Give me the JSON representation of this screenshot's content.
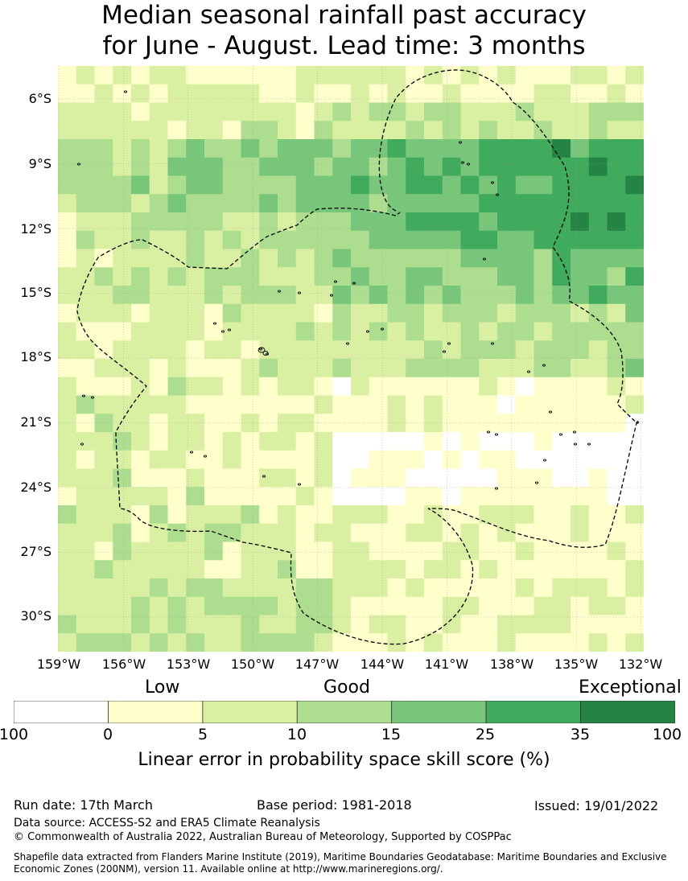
{
  "title": {
    "line1": "Median seasonal rainfall past accuracy",
    "line2": "for June - August. Lead time: 3 months"
  },
  "map": {
    "lat_labels": [
      "6°S",
      "9°S",
      "12°S",
      "15°S",
      "18°S",
      "21°S",
      "24°S",
      "27°S",
      "30°S"
    ],
    "lon_labels": [
      "159°W",
      "156°W",
      "153°W",
      "150°W",
      "147°W",
      "144°W",
      "141°W",
      "138°W",
      "135°W",
      "132°W"
    ]
  },
  "legend": {
    "categories": [
      "Low",
      "Good",
      "Exceptional"
    ],
    "bins": [
      {
        "color": "#ffffff"
      },
      {
        "color": "#ffffcc"
      },
      {
        "color": "#d9f0a3"
      },
      {
        "color": "#addd8e"
      },
      {
        "color": "#78c679"
      },
      {
        "color": "#41ab5d"
      },
      {
        "color": "#238443"
      }
    ],
    "ticks": [
      "100",
      "0",
      "5",
      "10",
      "15",
      "25",
      "35",
      "100"
    ],
    "label": "Linear error in probability space skill score (%)"
  },
  "footer": {
    "run_date": "Run date: 17th March",
    "base_period": "Base period: 1981-2018",
    "issued": "Issued: 19/01/2022",
    "data_source": "Data source: ACCESS-S2 and ERA5 Climate Reanalysis",
    "copyright": "© Commonwealth of Australia 2022, Australian Bureau of Meteorology, Supported by COSPPac",
    "shapefile_line1": "Shapefile data extracted from Flanders Marine Institute (2019), Maritime Boundaries Geodatabase: Maritime Boundaries and Exclusive",
    "shapefile_line2": "Economic Zones (200NM), version 11. Available online at http://www.marineregions.org/."
  }
}
